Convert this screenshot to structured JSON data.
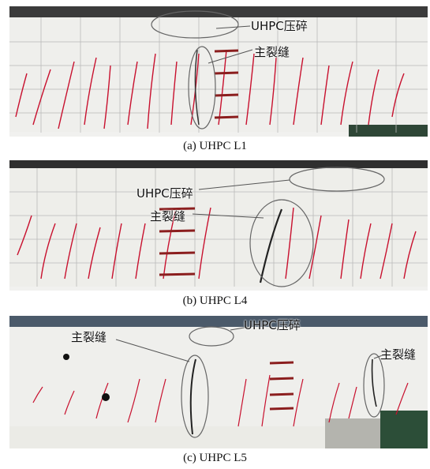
{
  "panels": [
    {
      "caption": "(a) UHPC L1",
      "annotations": {
        "crush_label": "UHPC压碎",
        "main_crack_label": "主裂缝"
      }
    },
    {
      "caption": "(b) UHPC L4",
      "annotations": {
        "crush_label": "UHPC压碎",
        "main_crack_label": "主裂缝"
      }
    },
    {
      "caption": "(c) UHPC L5",
      "annotations": {
        "crush_label": "UHPC压碎",
        "main_crack_label_left": "主裂缝",
        "main_crack_label_right": "主裂缝"
      }
    }
  ],
  "colors": {
    "crack_marking": "#c8102e",
    "beam_surface": "#efefec",
    "grid_line": "#b9b9b9",
    "leader_line": "#555555"
  }
}
